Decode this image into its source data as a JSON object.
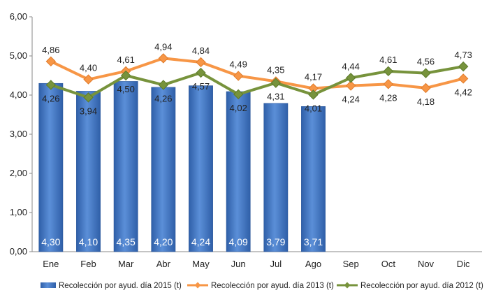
{
  "chart_data": {
    "type": "bar",
    "title": "",
    "xlabel": "",
    "ylabel": "",
    "ylim": [
      0,
      6
    ],
    "yticks": [
      "0,00",
      "1,00",
      "2,00",
      "3,00",
      "4,00",
      "5,00",
      "6,00"
    ],
    "categories": [
      "Ene",
      "Feb",
      "Mar",
      "Abr",
      "May",
      "Jun",
      "Jul",
      "Ago",
      "Sep",
      "Oct",
      "Nov",
      "Dic"
    ],
    "grid": false,
    "legend_position": "bottom",
    "series": [
      {
        "name": "Recolección por ayud. día 2015 (t)",
        "kind": "bar",
        "color": "#4a7ec7",
        "values": [
          4.3,
          4.1,
          4.35,
          4.2,
          4.24,
          4.09,
          3.79,
          3.71,
          null,
          null,
          null,
          null
        ],
        "labels": [
          "4,30",
          "4,10",
          "4,35",
          "4,20",
          "4,24",
          "4,09",
          "3,79",
          "3,71",
          "",
          "",
          "",
          ""
        ]
      },
      {
        "name": "Recolección por ayud. día 2013 (t)",
        "kind": "line",
        "color": "#f79646",
        "values": [
          4.86,
          4.4,
          4.61,
          4.94,
          4.84,
          4.49,
          4.35,
          4.17,
          4.24,
          4.28,
          4.18,
          4.42
        ],
        "labels": [
          "4,86",
          "4,40",
          "4,61",
          "4,94",
          "4,84",
          "4,49",
          "4,35",
          "4,17",
          "4,24",
          "4,28",
          "4,18",
          "4,42"
        ]
      },
      {
        "name": "Recolección por ayud. día 2012 (t)",
        "kind": "line",
        "color": "#77933c",
        "values": [
          4.26,
          3.94,
          4.5,
          4.26,
          4.57,
          4.02,
          4.31,
          4.01,
          4.44,
          4.61,
          4.56,
          4.73
        ],
        "labels": [
          "4,26",
          "3,94",
          "4,50",
          "4,26",
          "4,57",
          "4,02",
          "4,31",
          "4,01",
          "4,44",
          "4,61",
          "4,56",
          "4,73"
        ]
      }
    ]
  }
}
